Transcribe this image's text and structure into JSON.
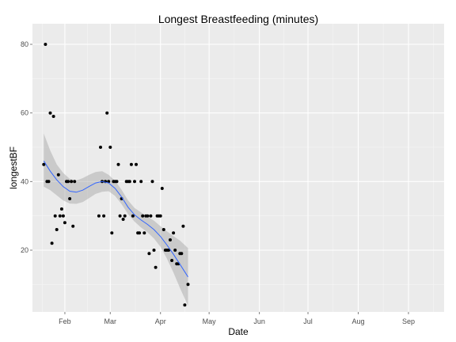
{
  "chart_data": {
    "type": "scatter",
    "title": "Longest Breastfeeding (minutes)",
    "xlabel": "Date",
    "ylabel": "longestBF",
    "x_axis": {
      "range": [
        "2011-01-12",
        "2011-09-23"
      ],
      "ticks": [
        {
          "date": "2011-02-01",
          "label": "Feb"
        },
        {
          "date": "2011-03-01",
          "label": "Mar"
        },
        {
          "date": "2011-04-01",
          "label": "Apr"
        },
        {
          "date": "2011-05-01",
          "label": "May"
        },
        {
          "date": "2011-06-01",
          "label": "Jun"
        },
        {
          "date": "2011-07-01",
          "label": "Jul"
        },
        {
          "date": "2011-08-01",
          "label": "Aug"
        },
        {
          "date": "2011-09-01",
          "label": "Sep"
        }
      ]
    },
    "y_axis": {
      "range": [
        2,
        86
      ],
      "ticks": [
        20,
        40,
        60,
        80
      ]
    },
    "grid": true,
    "points": [
      [
        "2011-01-19",
        45
      ],
      [
        "2011-01-20",
        80
      ],
      [
        "2011-01-21",
        40
      ],
      [
        "2011-01-22",
        40
      ],
      [
        "2011-01-23",
        60
      ],
      [
        "2011-01-24",
        22
      ],
      [
        "2011-01-25",
        59
      ],
      [
        "2011-01-26",
        30
      ],
      [
        "2011-01-27",
        26
      ],
      [
        "2011-01-28",
        42
      ],
      [
        "2011-01-29",
        30
      ],
      [
        "2011-01-30",
        32
      ],
      [
        "2011-01-31",
        30
      ],
      [
        "2011-02-01",
        28
      ],
      [
        "2011-02-02",
        40
      ],
      [
        "2011-02-03",
        40
      ],
      [
        "2011-02-04",
        35
      ],
      [
        "2011-02-05",
        40
      ],
      [
        "2011-02-06",
        27
      ],
      [
        "2011-02-07",
        40
      ],
      [
        "2011-02-22",
        30
      ],
      [
        "2011-02-23",
        50
      ],
      [
        "2011-02-24",
        40
      ],
      [
        "2011-02-25",
        30
      ],
      [
        "2011-02-26",
        40
      ],
      [
        "2011-02-27",
        60
      ],
      [
        "2011-02-28",
        40
      ],
      [
        "2011-03-01",
        50
      ],
      [
        "2011-03-02",
        25
      ],
      [
        "2011-03-03",
        40
      ],
      [
        "2011-03-04",
        40
      ],
      [
        "2011-03-05",
        40
      ],
      [
        "2011-03-06",
        45
      ],
      [
        "2011-03-07",
        30
      ],
      [
        "2011-03-08",
        35
      ],
      [
        "2011-03-09",
        29
      ],
      [
        "2011-03-10",
        30
      ],
      [
        "2011-03-11",
        40
      ],
      [
        "2011-03-12",
        40
      ],
      [
        "2011-03-13",
        40
      ],
      [
        "2011-03-14",
        45
      ],
      [
        "2011-03-15",
        30
      ],
      [
        "2011-03-16",
        40
      ],
      [
        "2011-03-17",
        45
      ],
      [
        "2011-03-18",
        25
      ],
      [
        "2011-03-19",
        25
      ],
      [
        "2011-03-20",
        40
      ],
      [
        "2011-03-21",
        30
      ],
      [
        "2011-03-22",
        25
      ],
      [
        "2011-03-23",
        30
      ],
      [
        "2011-03-24",
        30
      ],
      [
        "2011-03-25",
        19
      ],
      [
        "2011-03-26",
        30
      ],
      [
        "2011-03-27",
        40
      ],
      [
        "2011-03-28",
        20
      ],
      [
        "2011-03-29",
        15
      ],
      [
        "2011-03-30",
        30
      ],
      [
        "2011-03-31",
        30
      ],
      [
        "2011-04-01",
        30
      ],
      [
        "2011-04-02",
        38
      ],
      [
        "2011-04-03",
        26
      ],
      [
        "2011-04-04",
        20
      ],
      [
        "2011-04-05",
        20
      ],
      [
        "2011-04-06",
        20
      ],
      [
        "2011-04-07",
        23
      ],
      [
        "2011-04-08",
        17
      ],
      [
        "2011-04-09",
        25
      ],
      [
        "2011-04-10",
        20
      ],
      [
        "2011-04-11",
        16
      ],
      [
        "2011-04-12",
        16
      ],
      [
        "2011-04-13",
        19
      ],
      [
        "2011-04-14",
        19
      ],
      [
        "2011-04-15",
        27
      ],
      [
        "2011-04-16",
        4
      ],
      [
        "2011-04-18",
        10
      ]
    ],
    "smooth": {
      "x": [
        "2011-01-19",
        "2011-01-23",
        "2011-01-27",
        "2011-01-31",
        "2011-02-04",
        "2011-02-08",
        "2011-02-12",
        "2011-02-16",
        "2011-02-20",
        "2011-02-24",
        "2011-02-28",
        "2011-03-04",
        "2011-03-08",
        "2011-03-12",
        "2011-03-16",
        "2011-03-20",
        "2011-03-24",
        "2011-03-28",
        "2011-04-01",
        "2011-04-05",
        "2011-04-09",
        "2011-04-13",
        "2011-04-18"
      ],
      "fit": [
        46,
        43,
        40.5,
        38.5,
        37.2,
        36.9,
        37.5,
        38.6,
        39.6,
        40,
        39.6,
        38,
        35.5,
        32.5,
        30.3,
        28.8,
        27.5,
        26,
        24,
        21.5,
        18.8,
        15.9,
        12.2
      ],
      "lower": [
        38.5,
        37.5,
        36,
        34.5,
        33.6,
        33.5,
        34,
        35.2,
        36.4,
        37,
        37.2,
        35.8,
        33.4,
        30.5,
        28.3,
        26.6,
        25.2,
        23.4,
        21,
        17.5,
        13.5,
        9,
        3.8
      ],
      "upper": [
        54,
        49,
        45,
        42.5,
        40.8,
        40.3,
        41,
        42,
        42.8,
        43,
        42,
        40.2,
        37.6,
        34.5,
        32.3,
        31,
        29.8,
        28.6,
        27,
        25.5,
        24.1,
        22.8,
        20.6
      ],
      "line_color": "#3366ff",
      "band_color": "#999999"
    },
    "colors": {
      "panel": "#ebebeb",
      "grid_major": "#ffffff",
      "grid_minor": "#f5f5f5",
      "point": "#000000"
    }
  }
}
